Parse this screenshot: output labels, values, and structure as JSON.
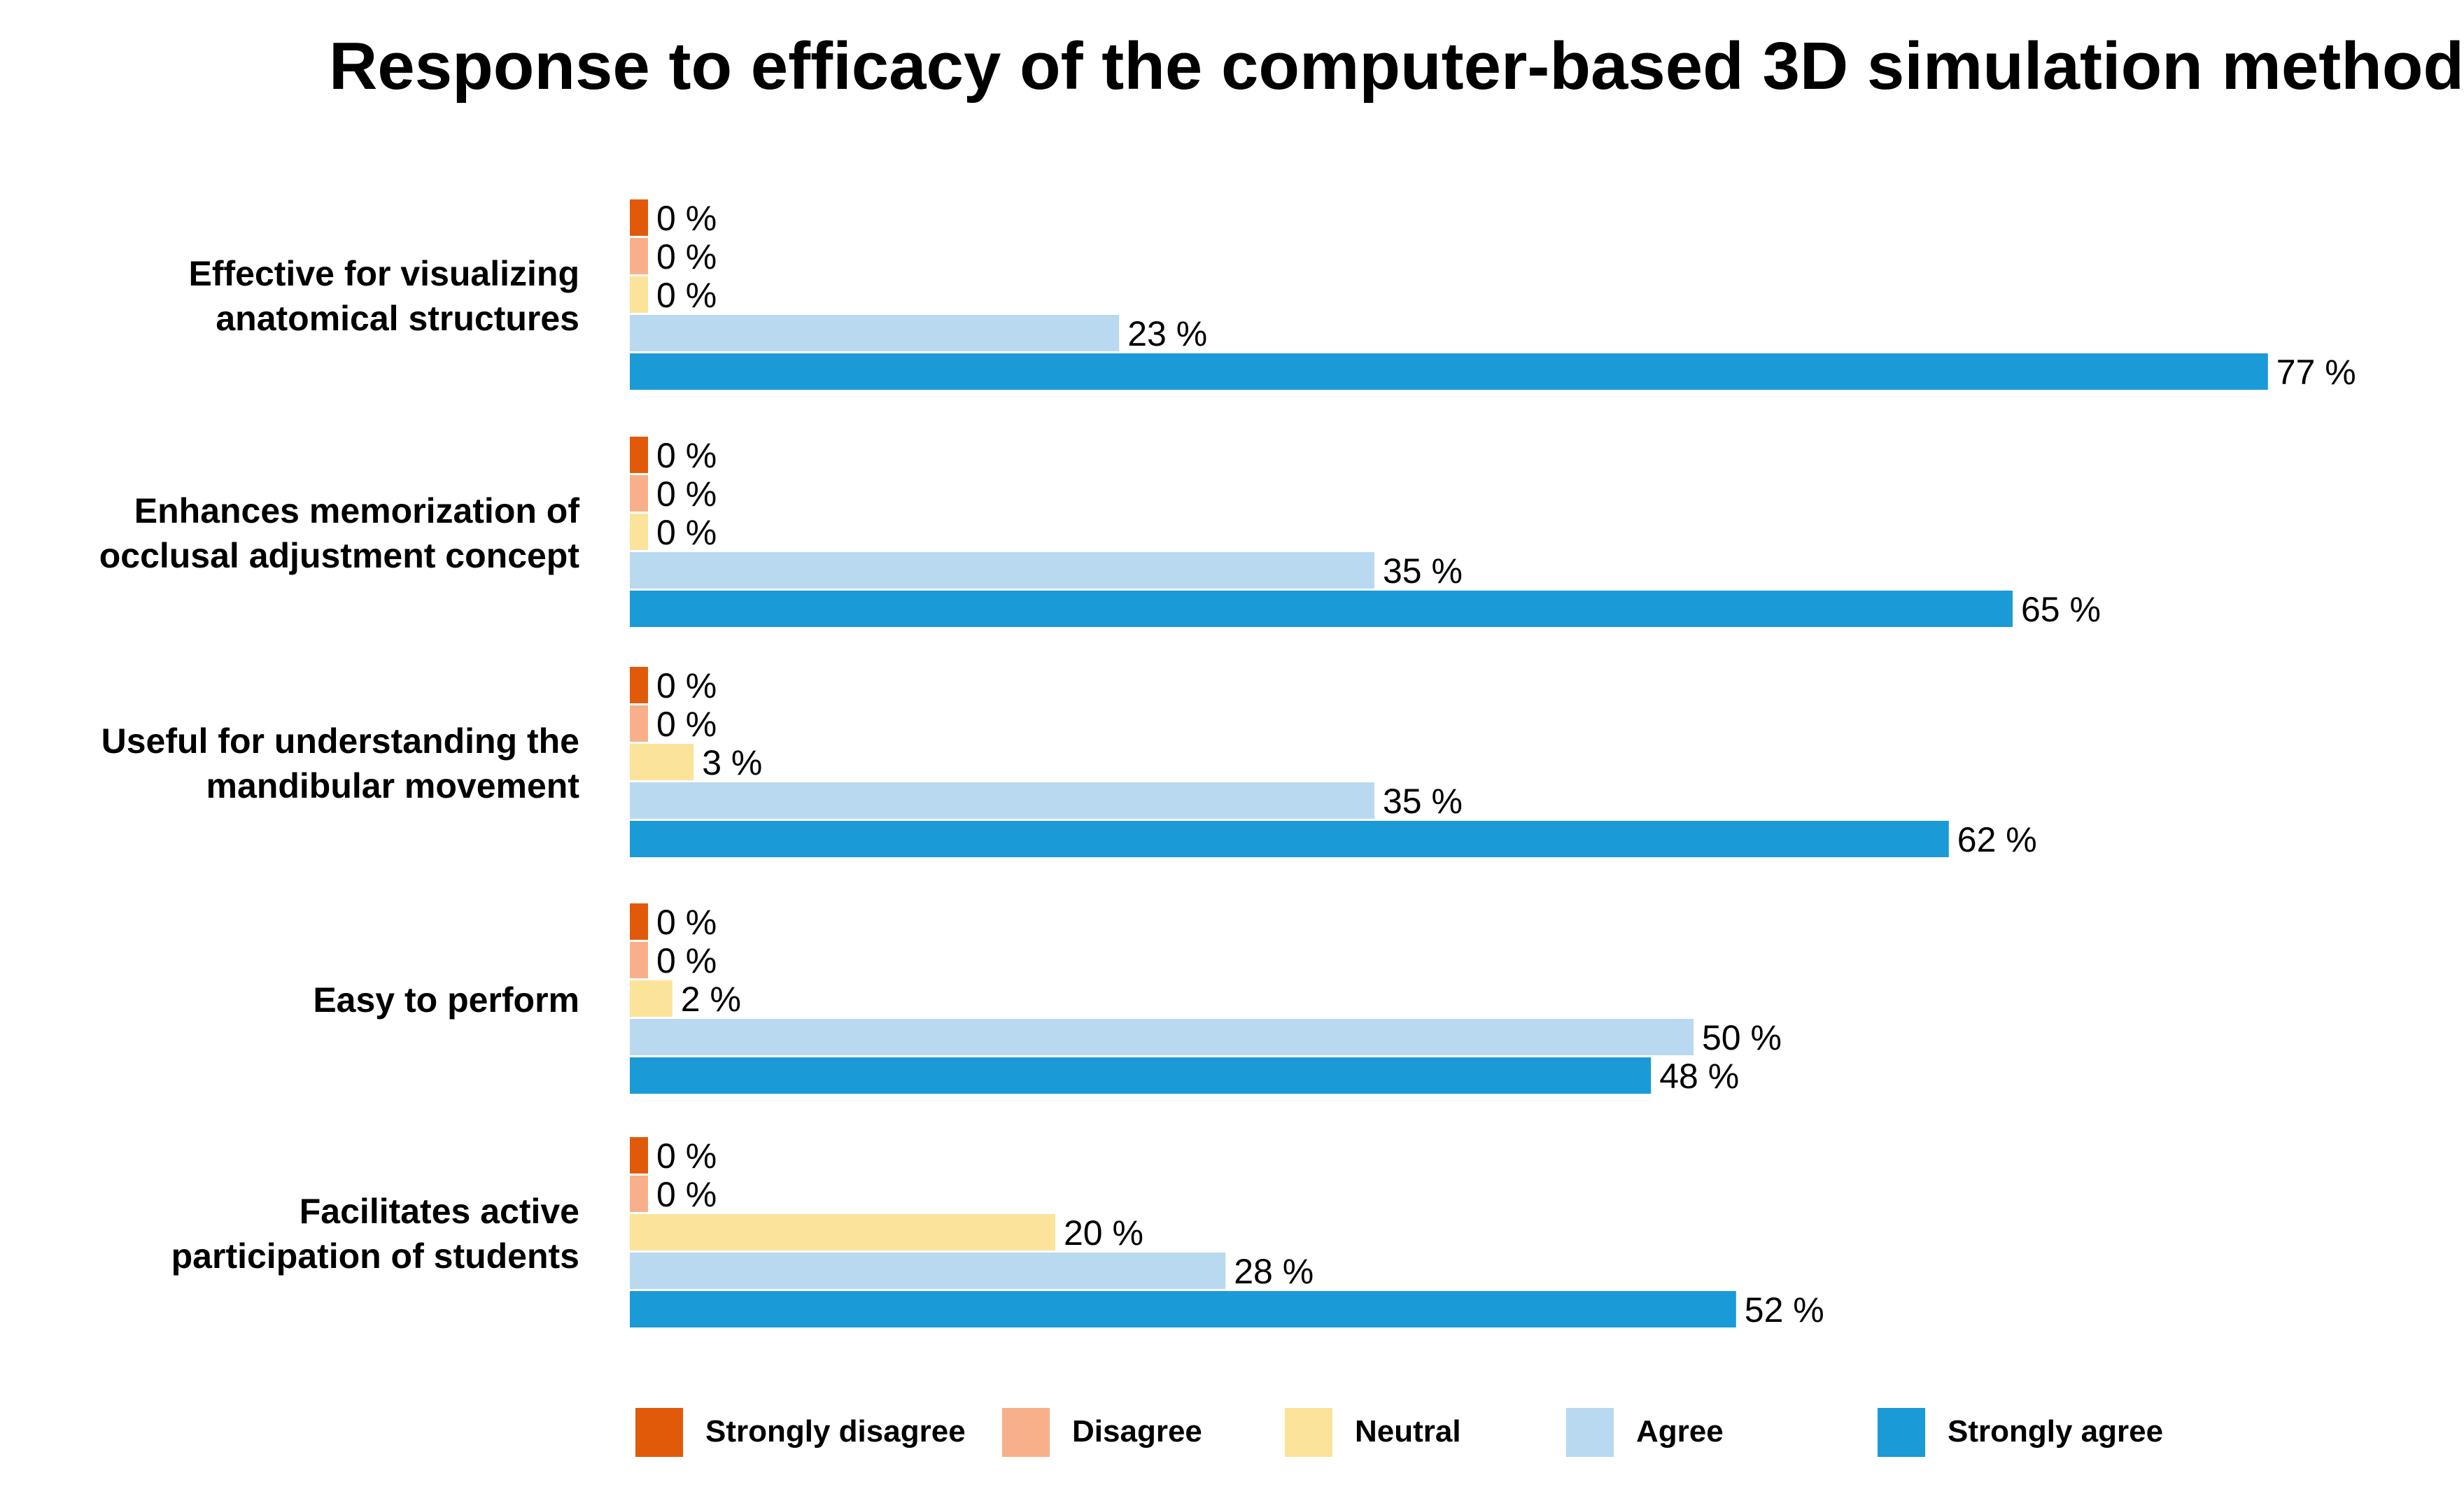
{
  "chart_data": {
    "type": "bar",
    "orientation": "horizontal",
    "title": "Response to efficacy of the computer-based 3D simulation method",
    "xlabel": "",
    "ylabel": "",
    "xlim": [
      0,
      100
    ],
    "grid": false,
    "value_suffix": " %",
    "legend_position": "bottom",
    "categories": [
      [
        "Effective for visualizing",
        "anatomical structures"
      ],
      [
        "Enhances memorization of",
        "occlusal adjustment concept"
      ],
      [
        "Useful for understanding the",
        "mandibular movement"
      ],
      [
        "Easy to perform"
      ],
      [
        "Facilitates active",
        "participation of students"
      ]
    ],
    "series": [
      {
        "name": "Strongly disagree",
        "color": "#E05A0A",
        "values": [
          0,
          0,
          0,
          0,
          0
        ]
      },
      {
        "name": "Disagree",
        "color": "#F8B08A",
        "values": [
          0,
          0,
          0,
          0,
          0
        ]
      },
      {
        "name": "Neutral",
        "color": "#FBE39A",
        "values": [
          0,
          0,
          3,
          2,
          20
        ]
      },
      {
        "name": "Agree",
        "color": "#B8D9F0",
        "values": [
          23,
          35,
          35,
          50,
          28
        ]
      },
      {
        "name": "Strongly agree",
        "color": "#1A9AD7",
        "values": [
          77,
          65,
          62,
          48,
          52
        ]
      }
    ]
  }
}
